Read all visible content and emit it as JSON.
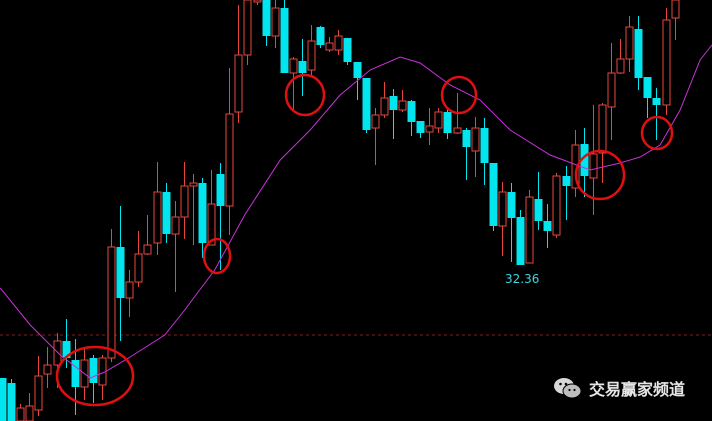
{
  "chart_data": {
    "type": "candlestick",
    "title": "",
    "xlabel": "",
    "ylabel": "",
    "ylim": [
      29.24,
      37.66
    ],
    "grid": false,
    "colors": {
      "up": "#e8463c",
      "down": "#00e5ee",
      "ma": "#c832d8",
      "reference": "#8a1c1c",
      "annotation": "#e01010",
      "background": "#000000"
    },
    "candle_fields": [
      "open",
      "close",
      "high",
      "low"
    ],
    "candles": [
      [
        30.1,
        29.24,
        30.1,
        29.2
      ],
      [
        30.0,
        29.24,
        30.08,
        29.2
      ],
      [
        29.24,
        29.5,
        29.58,
        29.2
      ],
      [
        29.24,
        29.54,
        29.8,
        29.2
      ],
      [
        29.46,
        30.14,
        30.54,
        29.34
      ],
      [
        30.18,
        30.36,
        30.72,
        29.9
      ],
      [
        30.36,
        30.84,
        31.0,
        29.9
      ],
      [
        30.84,
        30.5,
        31.28,
        30.3
      ],
      [
        30.46,
        29.92,
        30.88,
        29.36
      ],
      [
        29.92,
        30.46,
        30.72,
        29.66
      ],
      [
        30.5,
        30.0,
        30.56,
        29.6
      ],
      [
        29.96,
        30.5,
        30.56,
        29.66
      ],
      [
        30.5,
        32.72,
        33.08,
        30.42
      ],
      [
        32.72,
        31.7,
        33.54,
        30.84
      ],
      [
        31.7,
        32.02,
        32.26,
        31.32
      ],
      [
        32.02,
        32.58,
        33.04,
        31.92
      ],
      [
        32.58,
        32.76,
        33.36,
        32.56
      ],
      [
        32.8,
        33.82,
        34.42,
        32.56
      ],
      [
        33.82,
        32.98,
        34.0,
        32.8
      ],
      [
        32.98,
        33.32,
        33.64,
        31.82
      ],
      [
        33.32,
        33.94,
        34.42,
        32.88
      ],
      [
        33.94,
        34.0,
        34.18,
        32.76
      ],
      [
        34.0,
        32.8,
        34.1,
        32.5
      ],
      [
        32.76,
        33.58,
        34.26,
        32.76
      ],
      [
        34.18,
        33.54,
        34.4,
        32.26
      ],
      [
        33.54,
        35.38,
        36.3,
        32.96
      ],
      [
        35.42,
        36.56,
        37.56,
        35.2
      ],
      [
        36.56,
        37.66,
        37.7,
        36.36
      ],
      [
        37.62,
        37.66,
        37.7,
        37.56
      ],
      [
        37.66,
        36.94,
        37.7,
        36.74
      ],
      [
        36.94,
        37.5,
        37.7,
        36.7
      ],
      [
        37.5,
        36.2,
        37.7,
        36.2
      ],
      [
        36.2,
        36.48,
        36.52,
        35.46
      ],
      [
        36.44,
        36.2,
        36.88,
        35.74
      ],
      [
        36.26,
        36.84,
        37.16,
        36.14
      ],
      [
        37.12,
        36.76,
        37.14,
        36.7
      ],
      [
        36.66,
        36.8,
        36.92,
        36.62
      ],
      [
        36.66,
        36.94,
        37.06,
        36.56
      ],
      [
        36.9,
        36.42,
        36.9,
        36.36
      ],
      [
        36.42,
        36.1,
        36.42,
        35.66
      ],
      [
        36.1,
        35.06,
        36.1,
        35.0
      ],
      [
        35.1,
        35.36,
        35.5,
        34.36
      ],
      [
        35.36,
        35.7,
        36.02,
        35.3
      ],
      [
        35.74,
        35.46,
        35.88,
        34.88
      ],
      [
        35.46,
        35.64,
        35.86,
        35.42
      ],
      [
        35.64,
        35.22,
        35.66,
        34.94
      ],
      [
        35.24,
        35.0,
        35.24,
        34.9
      ],
      [
        35.02,
        35.14,
        35.5,
        34.76
      ],
      [
        35.1,
        35.42,
        35.5,
        35.0
      ],
      [
        35.42,
        35.0,
        35.5,
        34.88
      ],
      [
        35.0,
        35.1,
        35.8,
        34.98
      ],
      [
        35.06,
        34.72,
        35.1,
        34.06
      ],
      [
        34.64,
        35.1,
        35.32,
        34.12
      ],
      [
        35.1,
        34.4,
        35.3,
        33.96
      ],
      [
        34.4,
        33.14,
        34.4,
        33.04
      ],
      [
        33.14,
        33.82,
        34.02,
        32.54
      ],
      [
        33.82,
        33.3,
        34.0,
        32.42
      ],
      [
        33.32,
        32.36,
        33.46,
        32.36
      ],
      [
        32.4,
        33.72,
        33.86,
        32.4
      ],
      [
        33.68,
        33.24,
        34.22,
        33.06
      ],
      [
        33.24,
        33.04,
        33.58,
        32.7
      ],
      [
        32.96,
        34.14,
        34.2,
        32.9
      ],
      [
        34.14,
        33.94,
        34.34,
        33.26
      ],
      [
        33.9,
        34.76,
        35.06,
        33.72
      ],
      [
        34.78,
        34.14,
        35.1,
        33.72
      ],
      [
        34.1,
        34.58,
        35.56,
        33.36
      ],
      [
        34.6,
        35.56,
        35.6,
        34.0
      ],
      [
        35.52,
        36.2,
        36.8,
        34.86
      ],
      [
        36.2,
        36.48,
        36.88,
        36.18
      ],
      [
        36.48,
        37.12,
        37.34,
        36.22
      ],
      [
        37.08,
        36.1,
        37.34,
        35.86
      ],
      [
        36.12,
        35.7,
        36.12,
        35.3
      ],
      [
        35.7,
        35.56,
        35.9,
        34.86
      ],
      [
        35.56,
        37.26,
        37.5,
        35.36
      ],
      [
        37.3,
        37.66,
        37.7,
        36.86
      ]
    ],
    "ma": {
      "x": [
        -0.2,
        3.1,
        6.4,
        9.7,
        11.3,
        14.1,
        17.9,
        20.1,
        23.4,
        26.7,
        30.6,
        33.9,
        37.2,
        40.5,
        43.8,
        46,
        49.3,
        52.6,
        55.9,
        60.3,
        64.7,
        68,
        70.2,
        72.4,
        74.6,
        76.8,
        78.1
      ],
      "values": [
        31.9,
        31.16,
        30.56,
        30.1,
        30.22,
        30.52,
        30.96,
        31.46,
        32.26,
        33.36,
        34.46,
        35.06,
        35.76,
        36.26,
        36.52,
        36.4,
        35.96,
        35.66,
        35.06,
        34.56,
        34.26,
        34.4,
        34.52,
        34.76,
        35.46,
        36.46,
        36.76
      ]
    },
    "reference_line": 30.96,
    "annotations": {
      "low_label": "32.36",
      "low_index": 57
    },
    "circled_candles": [
      9.5,
      23.5,
      33.5,
      50.5,
      65.5,
      72
    ]
  },
  "watermark": {
    "icon": "wechat-icon",
    "text": "交易赢家频道"
  }
}
